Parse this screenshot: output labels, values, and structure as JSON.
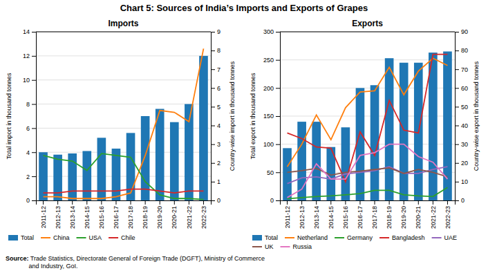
{
  "title": "Chart 5: Sources of India’s Imports and Exports of Grapes",
  "annotations": [
    "Source:",
    " Trade Statistics, Directorate General of Foreign Trade (DGFT), Ministry of Commerce\nand Industry, GoI."
  ],
  "chart_data": [
    {
      "type": "bar",
      "title": "Imports",
      "categories": [
        "2011-12",
        "2012-13",
        "2013-14",
        "2014-15",
        "2015-16",
        "2016-17",
        "2017-18",
        "2018-19",
        "2019-20",
        "2020-21",
        "2021-22",
        "2022-23"
      ],
      "ylabel": "Total import in thousand tonnes",
      "y2label": "Country-wise import in thousand tonnes",
      "ylim": [
        0,
        14
      ],
      "yticks": [
        0,
        2,
        4,
        6,
        8,
        10,
        12,
        14
      ],
      "y2lim": [
        0,
        9
      ],
      "y2ticks": [
        0,
        1,
        2,
        3,
        4,
        5,
        6,
        7,
        8,
        9
      ],
      "grid": true,
      "legend": "bottom",
      "series": [
        {
          "name": "Total",
          "type": "bar",
          "values": [
            4.0,
            3.8,
            3.9,
            4.1,
            5.2,
            4.3,
            5.6,
            7.0,
            7.6,
            6.5,
            8.0,
            12.0
          ]
        },
        {
          "name": "China",
          "type": "line",
          "axis": "y2",
          "values": [
            0.2,
            0.2,
            0.1,
            0.1,
            0.1,
            0.2,
            0.4,
            2.4,
            4.8,
            4.7,
            4.2,
            8.1
          ]
        },
        {
          "name": "USA",
          "type": "line",
          "axis": "y2",
          "values": [
            2.4,
            2.2,
            2.1,
            1.6,
            2.5,
            2.4,
            2.3,
            1.0,
            0.3,
            0.1,
            0.1,
            0.05
          ]
        },
        {
          "name": "Chile",
          "type": "line",
          "axis": "y2",
          "values": [
            0.4,
            0.4,
            0.5,
            0.5,
            0.5,
            0.5,
            0.6,
            0.6,
            0.5,
            0.4,
            0.5,
            0.5
          ]
        }
      ]
    },
    {
      "type": "bar",
      "title": "Exports",
      "categories": [
        "2011-12",
        "2012-13",
        "2013-14",
        "2014-15",
        "2015-16",
        "2016-17",
        "2017-18",
        "2018-19",
        "2019-20",
        "2020-21",
        "2021-22",
        "2022-23"
      ],
      "ylabel": "Total export in thousand tonnes",
      "y2label": "Country-wise export in thousand tonnes",
      "ylim": [
        0,
        300
      ],
      "yticks": [
        0,
        50,
        100,
        150,
        200,
        250,
        300
      ],
      "y2lim": [
        0,
        90
      ],
      "y2ticks": [
        0,
        10,
        20,
        30,
        40,
        50,
        60,
        70,
        80,
        90
      ],
      "grid": true,
      "legend": "bottom",
      "series": [
        {
          "name": "Total",
          "type": "bar",
          "values": [
            93,
            140,
            140,
            95,
            130,
            200,
            205,
            253,
            245,
            245,
            263,
            265
          ]
        },
        {
          "name": "Netherland",
          "type": "line",
          "values": [
            60,
            100,
            152,
            108,
            165,
            193,
            195,
            237,
            188,
            230,
            253,
            240
          ]
        },
        {
          "name": "Germany",
          "type": "line",
          "values": [
            3,
            5,
            7,
            8,
            10,
            12,
            18,
            18,
            10,
            8,
            7,
            23
          ]
        },
        {
          "name": "Bangladesh",
          "type": "line",
          "values": [
            120,
            110,
            95,
            93,
            33,
            122,
            80,
            178,
            125,
            120,
            260,
            260
          ]
        },
        {
          "name": "UAE",
          "type": "line",
          "values": [
            30,
            40,
            42,
            38,
            47,
            50,
            53,
            60,
            48,
            48,
            55,
            60
          ]
        },
        {
          "name": "UK",
          "type": "line",
          "values": [
            50,
            53,
            57,
            45,
            50,
            52,
            55,
            58,
            48,
            55,
            50,
            42
          ]
        },
        {
          "name": "Russia",
          "type": "line",
          "values": [
            5,
            20,
            65,
            38,
            38,
            80,
            85,
            100,
            100,
            78,
            68,
            38
          ]
        }
      ]
    }
  ]
}
